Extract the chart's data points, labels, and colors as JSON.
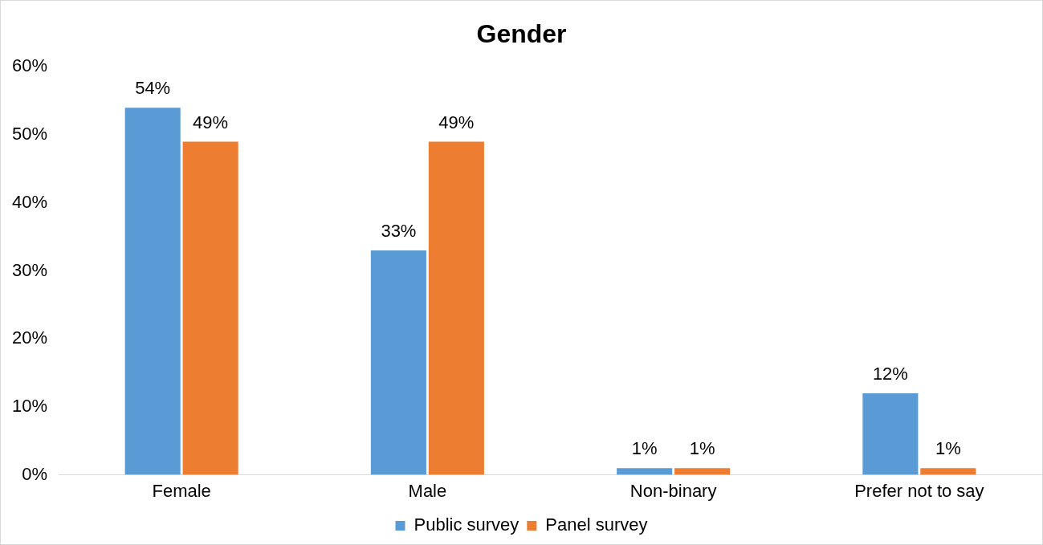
{
  "chart_data": {
    "type": "bar",
    "title": "Gender",
    "categories": [
      "Female",
      "Male",
      "Non-binary",
      "Prefer not to say"
    ],
    "series": [
      {
        "name": "Public survey",
        "color": "#5b9bd5",
        "values": [
          54,
          33,
          1,
          12
        ],
        "value_labels": [
          "54%",
          "33%",
          "1%",
          "12%"
        ]
      },
      {
        "name": "Panel survey",
        "color": "#ed7d31",
        "values": [
          49,
          49,
          1,
          1
        ],
        "value_labels": [
          "49%",
          "49%",
          "1%",
          "1%"
        ]
      }
    ],
    "ylim": [
      0,
      60
    ],
    "yticks": [
      {
        "value": 0,
        "label": "0%"
      },
      {
        "value": 10,
        "label": "10%"
      },
      {
        "value": 20,
        "label": "20%"
      },
      {
        "value": 30,
        "label": "30%"
      },
      {
        "value": 40,
        "label": "40%"
      },
      {
        "value": 50,
        "label": "50%"
      },
      {
        "value": 60,
        "label": "60%"
      }
    ],
    "grid": false,
    "legend": "bottom"
  }
}
